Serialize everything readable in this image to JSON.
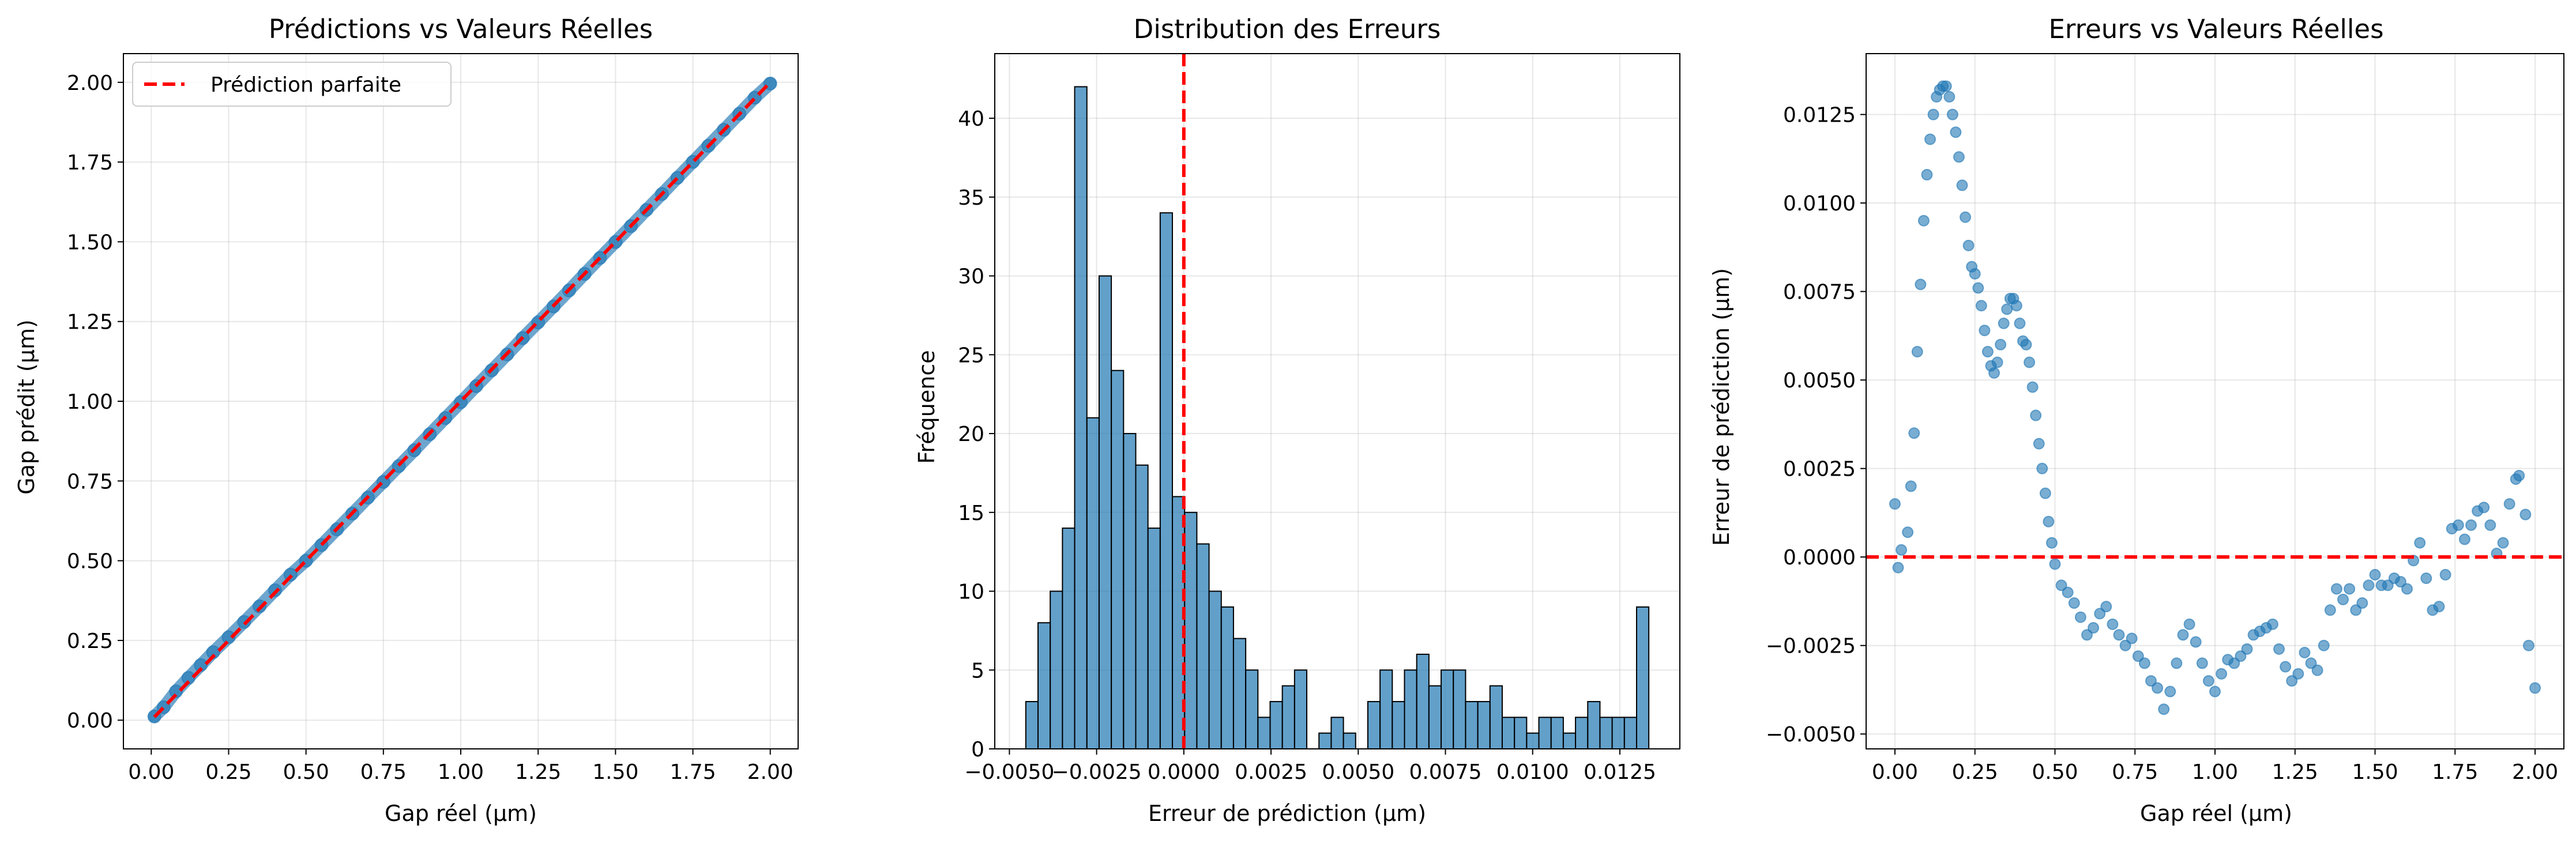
{
  "colors": {
    "scatter": "#1f77b4",
    "bar_fill": "#1f77b4",
    "bar_edge": "#000000",
    "ref_line": "#ff0000",
    "grid": "#b0b0b0"
  },
  "chart_data": [
    {
      "type": "scatter",
      "title": "Prédictions vs Valeurs Réelles",
      "xlabel": "Gap réel (µm)",
      "ylabel": "Gap prédit (µm)",
      "xlim": [
        -0.09,
        2.09
      ],
      "ylim": [
        -0.09,
        2.09
      ],
      "xticks": [
        0.0,
        0.25,
        0.5,
        0.75,
        1.0,
        1.25,
        1.5,
        1.75,
        2.0
      ],
      "xtick_labels": [
        "0.00",
        "0.25",
        "0.50",
        "0.75",
        "1.00",
        "1.25",
        "1.50",
        "1.75",
        "2.00"
      ],
      "yticks": [
        0.0,
        0.25,
        0.5,
        0.75,
        1.0,
        1.25,
        1.5,
        1.75,
        2.0
      ],
      "ytick_labels": [
        "0.00",
        "0.25",
        "0.50",
        "0.75",
        "1.00",
        "1.25",
        "1.50",
        "1.75",
        "2.00"
      ],
      "grid": true,
      "legend": "upper left",
      "series": [
        {
          "name": "",
          "kind": "scatter",
          "x": [
            0.01,
            0.04,
            0.08,
            0.12,
            0.16,
            0.2,
            0.25,
            0.3,
            0.35,
            0.4,
            0.45,
            0.5,
            0.55,
            0.6,
            0.65,
            0.7,
            0.75,
            0.8,
            0.85,
            0.9,
            0.95,
            1.0,
            1.05,
            1.1,
            1.15,
            1.2,
            1.25,
            1.3,
            1.35,
            1.4,
            1.45,
            1.5,
            1.55,
            1.6,
            1.65,
            1.7,
            1.75,
            1.8,
            1.85,
            1.9,
            1.95,
            2.0
          ],
          "y": [
            0.0115,
            0.0403,
            0.0904,
            0.1325,
            0.1728,
            0.2131,
            0.2601,
            0.308,
            0.357,
            0.4072,
            0.4563,
            0.5,
            0.549,
            0.5985,
            0.6477,
            0.6978,
            0.7472,
            0.7969,
            0.8463,
            0.8968,
            0.9473,
            0.997,
            1.0475,
            1.097,
            1.1468,
            1.198,
            1.2472,
            1.2973,
            1.3475,
            1.3993,
            1.4495,
            1.4993,
            1.5493,
            1.6,
            1.6498,
            1.7005,
            1.7506,
            1.8012,
            1.8512,
            1.9014,
            1.952,
            1.9962
          ]
        },
        {
          "name": "Prédiction parfaite",
          "kind": "line",
          "x": [
            0.01,
            2.0
          ],
          "y": [
            0.01,
            2.0
          ]
        }
      ]
    },
    {
      "type": "histogram",
      "title": "Distribution des Erreurs",
      "xlabel": "Erreur de prédiction (µm)",
      "ylabel": "Fréquence",
      "xlim": [
        -0.00542,
        0.01422
      ],
      "ylim": [
        0,
        44.1
      ],
      "xticks": [
        -0.005,
        -0.0025,
        0.0,
        0.0025,
        0.005,
        0.0075,
        0.01,
        0.0125
      ],
      "xtick_labels": [
        "−0.0050",
        "−0.0025",
        "0.0000",
        "0.0025",
        "0.0050",
        "0.0075",
        "0.0100",
        "0.0125"
      ],
      "yticks": [
        0,
        5,
        10,
        15,
        20,
        25,
        30,
        35,
        40
      ],
      "ytick_labels": [
        "0",
        "5",
        "10",
        "15",
        "20",
        "25",
        "30",
        "35",
        "40"
      ],
      "grid": true,
      "bin_start": -0.00453,
      "bin_end": 0.01333,
      "counts": [
        3,
        8,
        10,
        14,
        42,
        21,
        30,
        24,
        20,
        18,
        14,
        34,
        16,
        15,
        13,
        10,
        9,
        7,
        5,
        2,
        3,
        4,
        5,
        0,
        1,
        2,
        1,
        0,
        3,
        5,
        3,
        5,
        6,
        4,
        5,
        5,
        3,
        3,
        4,
        2,
        2,
        1,
        2,
        2,
        1,
        2,
        3,
        2,
        2,
        2,
        9
      ],
      "vline": 0.0
    },
    {
      "type": "scatter",
      "title": "Erreurs vs Valeurs Réelles",
      "xlabel": "Gap réel (µm)",
      "ylabel": "Erreur de prédiction (µm)",
      "xlim": [
        -0.09,
        2.09
      ],
      "ylim": [
        -0.00542,
        0.01422
      ],
      "xticks": [
        0.0,
        0.25,
        0.5,
        0.75,
        1.0,
        1.25,
        1.5,
        1.75,
        2.0
      ],
      "xtick_labels": [
        "0.00",
        "0.25",
        "0.50",
        "0.75",
        "1.00",
        "1.25",
        "1.50",
        "1.75",
        "2.00"
      ],
      "yticks": [
        -0.005,
        -0.0025,
        0.0,
        0.0025,
        0.005,
        0.0075,
        0.01,
        0.0125
      ],
      "ytick_labels": [
        "−0.0050",
        "−0.0025",
        "0.0000",
        "0.0025",
        "0.0050",
        "0.0075",
        "0.0100",
        "0.0125"
      ],
      "grid": true,
      "hline": 0.0,
      "x": [
        0.0,
        0.01,
        0.02,
        0.04,
        0.05,
        0.06,
        0.07,
        0.08,
        0.09,
        0.1,
        0.11,
        0.12,
        0.13,
        0.14,
        0.15,
        0.16,
        0.17,
        0.18,
        0.19,
        0.2,
        0.21,
        0.22,
        0.23,
        0.24,
        0.25,
        0.26,
        0.27,
        0.28,
        0.29,
        0.3,
        0.31,
        0.32,
        0.33,
        0.34,
        0.35,
        0.36,
        0.37,
        0.38,
        0.39,
        0.4,
        0.41,
        0.42,
        0.43,
        0.44,
        0.45,
        0.46,
        0.47,
        0.48,
        0.49,
        0.5,
        0.52,
        0.54,
        0.56,
        0.58,
        0.6,
        0.62,
        0.64,
        0.66,
        0.68,
        0.7,
        0.72,
        0.74,
        0.76,
        0.78,
        0.8,
        0.82,
        0.84,
        0.86,
        0.88,
        0.9,
        0.92,
        0.94,
        0.96,
        0.98,
        1.0,
        1.02,
        1.04,
        1.06,
        1.08,
        1.1,
        1.12,
        1.14,
        1.16,
        1.18,
        1.2,
        1.22,
        1.24,
        1.26,
        1.28,
        1.3,
        1.32,
        1.34,
        1.36,
        1.38,
        1.4,
        1.42,
        1.44,
        1.46,
        1.48,
        1.5,
        1.52,
        1.54,
        1.56,
        1.58,
        1.6,
        1.62,
        1.64,
        1.66,
        1.68,
        1.7,
        1.72,
        1.74,
        1.76,
        1.78,
        1.8,
        1.82,
        1.84,
        1.86,
        1.88,
        1.9,
        1.92,
        1.94,
        1.95,
        1.97,
        1.98,
        2.0
      ],
      "y": [
        0.0015,
        -0.0003,
        0.0002,
        0.0007,
        0.002,
        0.0035,
        0.0058,
        0.0077,
        0.0095,
        0.0108,
        0.0118,
        0.0125,
        0.013,
        0.0132,
        0.0133,
        0.0133,
        0.013,
        0.0125,
        0.012,
        0.0113,
        0.0105,
        0.0096,
        0.0088,
        0.0082,
        0.008,
        0.0076,
        0.0071,
        0.0064,
        0.0058,
        0.0054,
        0.0052,
        0.0055,
        0.006,
        0.0066,
        0.007,
        0.0073,
        0.0073,
        0.0071,
        0.0066,
        0.0061,
        0.006,
        0.0055,
        0.0048,
        0.004,
        0.0032,
        0.0025,
        0.0018,
        0.001,
        0.0004,
        -0.0002,
        -0.0008,
        -0.001,
        -0.0013,
        -0.0017,
        -0.0022,
        -0.002,
        -0.0016,
        -0.0014,
        -0.0019,
        -0.0022,
        -0.0025,
        -0.0023,
        -0.0028,
        -0.003,
        -0.0035,
        -0.0037,
        -0.0043,
        -0.0038,
        -0.003,
        -0.0022,
        -0.0019,
        -0.0024,
        -0.003,
        -0.0035,
        -0.0038,
        -0.0033,
        -0.0029,
        -0.003,
        -0.0028,
        -0.0026,
        -0.0022,
        -0.0021,
        -0.002,
        -0.0019,
        -0.0026,
        -0.0031,
        -0.0035,
        -0.0033,
        -0.0027,
        -0.003,
        -0.0032,
        -0.0025,
        -0.0015,
        -0.0009,
        -0.0012,
        -0.0009,
        -0.0015,
        -0.0013,
        -0.0008,
        -0.0005,
        -0.0008,
        -0.0008,
        -0.0006,
        -0.0007,
        -0.0009,
        -0.0001,
        0.0004,
        -0.0006,
        -0.0015,
        -0.0014,
        -0.0005,
        0.0008,
        0.0009,
        0.0005,
        0.0009,
        0.0013,
        0.0014,
        0.0009,
        0.0001,
        0.0004,
        0.0015,
        0.0022,
        0.0023,
        0.0012,
        -0.0025,
        -0.0037
      ]
    }
  ]
}
